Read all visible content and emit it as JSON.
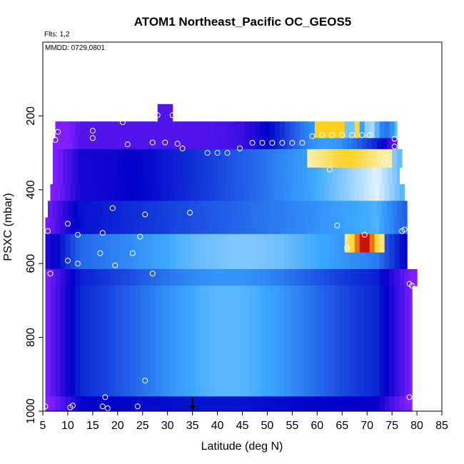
{
  "chart_data": {
    "type": "heatmap",
    "title": "ATOM1 Northeast_Pacific OC_GEOS5",
    "subtitle_flights": "Flts: 1,2",
    "annotation_dates": "MMDD: 0729,0801",
    "xlabel": "Latitude (deg N)",
    "ylabel": "PSXC (mbar)",
    "xlim": [
      5,
      85
    ],
    "ylim": [
      1000,
      0
    ],
    "x_ticks": [
      5,
      10,
      15,
      20,
      25,
      30,
      35,
      40,
      45,
      50,
      55,
      60,
      65,
      70,
      75,
      80,
      85
    ],
    "y_ticks": [
      200,
      400,
      600,
      800,
      1000
    ],
    "arrow_marker_latitude": 35,
    "colors": {
      "low": "#7f1fff",
      "mid_low": "#0000c8",
      "mid": "#3aa8ff",
      "mid_high": "#ffffff",
      "high": "#ffd21f",
      "max": "#c80000"
    },
    "bands": [
      {
        "p_top": 168,
        "p_bot": 215,
        "lat_start": 28,
        "lat_end": 31
      },
      {
        "p_top": 215,
        "p_bot": 260,
        "lat_start": 7.5,
        "lat_end": 76
      },
      {
        "p_top": 260,
        "p_bot": 290,
        "lat_start": 7,
        "lat_end": 76
      },
      {
        "p_top": 290,
        "p_bot": 340,
        "lat_start": 7,
        "lat_end": 77
      },
      {
        "p_top": 340,
        "p_bot": 385,
        "lat_start": 7,
        "lat_end": 76.5
      },
      {
        "p_top": 385,
        "p_bot": 430,
        "lat_start": 6.5,
        "lat_end": 77.5
      },
      {
        "p_top": 430,
        "p_bot": 475,
        "lat_start": 6,
        "lat_end": 78
      },
      {
        "p_top": 475,
        "p_bot": 520,
        "lat_start": 5.5,
        "lat_end": 78
      },
      {
        "p_top": 520,
        "p_bot": 570,
        "lat_start": 5.5,
        "lat_end": 78
      },
      {
        "p_top": 570,
        "p_bot": 615,
        "lat_start": 5.5,
        "lat_end": 78
      },
      {
        "p_top": 615,
        "p_bot": 660,
        "lat_start": 5.5,
        "lat_end": 80
      },
      {
        "p_top": 660,
        "p_bot": 960,
        "lat_start": 5.5,
        "lat_end": 79
      },
      {
        "p_top": 960,
        "p_bot": 1000,
        "lat_start": 5.5,
        "lat_end": 79
      }
    ],
    "points": [
      {
        "lat": 8,
        "p": 243
      },
      {
        "lat": 7.5,
        "p": 265
      },
      {
        "lat": 15,
        "p": 240
      },
      {
        "lat": 15,
        "p": 260
      },
      {
        "lat": 21,
        "p": 217
      },
      {
        "lat": 22,
        "p": 277
      },
      {
        "lat": 27,
        "p": 272
      },
      {
        "lat": 28,
        "p": 198
      },
      {
        "lat": 29.5,
        "p": 272
      },
      {
        "lat": 31,
        "p": 198
      },
      {
        "lat": 32,
        "p": 275
      },
      {
        "lat": 33,
        "p": 288
      },
      {
        "lat": 38,
        "p": 300
      },
      {
        "lat": 40,
        "p": 300
      },
      {
        "lat": 42,
        "p": 300
      },
      {
        "lat": 44.5,
        "p": 288
      },
      {
        "lat": 47,
        "p": 273
      },
      {
        "lat": 49,
        "p": 273
      },
      {
        "lat": 51,
        "p": 273
      },
      {
        "lat": 53,
        "p": 273
      },
      {
        "lat": 55,
        "p": 273
      },
      {
        "lat": 57,
        "p": 273
      },
      {
        "lat": 59,
        "p": 255
      },
      {
        "lat": 61,
        "p": 252
      },
      {
        "lat": 63,
        "p": 252
      },
      {
        "lat": 65,
        "p": 252
      },
      {
        "lat": 67,
        "p": 252
      },
      {
        "lat": 69,
        "p": 252
      },
      {
        "lat": 70.5,
        "p": 252
      },
      {
        "lat": 75.5,
        "p": 262
      },
      {
        "lat": 75.5,
        "p": 283
      },
      {
        "lat": 62.5,
        "p": 345
      },
      {
        "lat": 73.5,
        "p": 325
      },
      {
        "lat": 10,
        "p": 492
      },
      {
        "lat": 19,
        "p": 450
      },
      {
        "lat": 25.5,
        "p": 467
      },
      {
        "lat": 34.5,
        "p": 462
      },
      {
        "lat": 12,
        "p": 522
      },
      {
        "lat": 6,
        "p": 512
      },
      {
        "lat": 17,
        "p": 517
      },
      {
        "lat": 24.5,
        "p": 527
      },
      {
        "lat": 64,
        "p": 497
      },
      {
        "lat": 66,
        "p": 557
      },
      {
        "lat": 69.5,
        "p": 522
      },
      {
        "lat": 77,
        "p": 512
      },
      {
        "lat": 77.5,
        "p": 508
      },
      {
        "lat": 10,
        "p": 592
      },
      {
        "lat": 12,
        "p": 600
      },
      {
        "lat": 16.5,
        "p": 572
      },
      {
        "lat": 19.5,
        "p": 605
      },
      {
        "lat": 23,
        "p": 572
      },
      {
        "lat": 27,
        "p": 627
      },
      {
        "lat": 6.5,
        "p": 627
      },
      {
        "lat": 78.5,
        "p": 655
      },
      {
        "lat": 79,
        "p": 660
      },
      {
        "lat": 25.5,
        "p": 917
      },
      {
        "lat": 17.5,
        "p": 962
      },
      {
        "lat": 5.5,
        "p": 987
      },
      {
        "lat": 11,
        "p": 985
      },
      {
        "lat": 10.5,
        "p": 990
      },
      {
        "lat": 17,
        "p": 987
      },
      {
        "lat": 18,
        "p": 992
      },
      {
        "lat": 24,
        "p": 987
      },
      {
        "lat": 78.5,
        "p": 962
      }
    ]
  }
}
